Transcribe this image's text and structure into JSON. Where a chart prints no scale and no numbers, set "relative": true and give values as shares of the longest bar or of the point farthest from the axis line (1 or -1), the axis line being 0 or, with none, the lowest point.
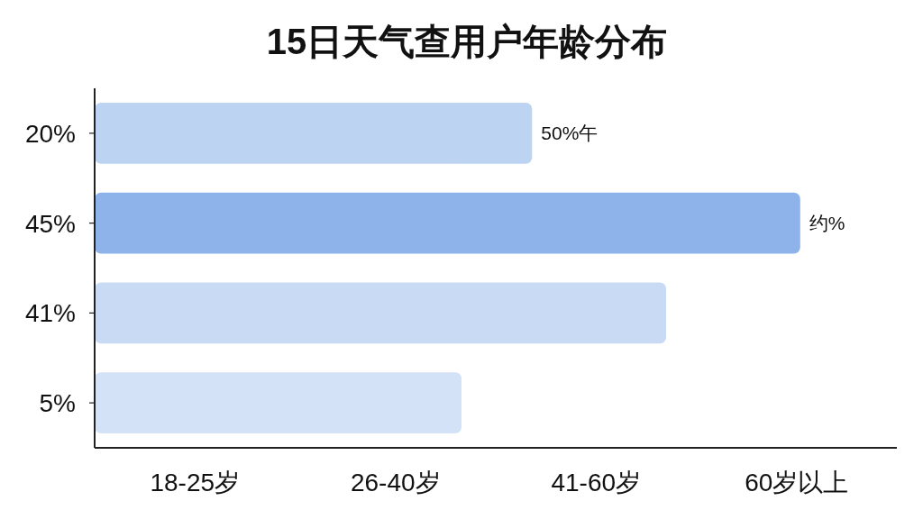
{
  "chart_data": {
    "type": "bar",
    "orientation": "horizontal",
    "title": "15日天气查用户年龄分布",
    "categories": [
      "20%",
      "45%",
      "41%",
      "5%"
    ],
    "values": [
      0.62,
      1,
      0.81,
      0.52
    ],
    "colors": [
      "#bcd3f2",
      "#8db3ea",
      "#c9dbf4",
      "#d3e2f6"
    ],
    "relative": true,
    "annotations": [
      {
        "text": "50%午",
        "x": 0.62,
        "y": "20%"
      },
      {
        "text": "约%",
        "x": 1,
        "y": "45%"
      },
      "18-25岁",
      "26-40岁",
      "41-60岁",
      "60岁以上"
    ]
  }
}
